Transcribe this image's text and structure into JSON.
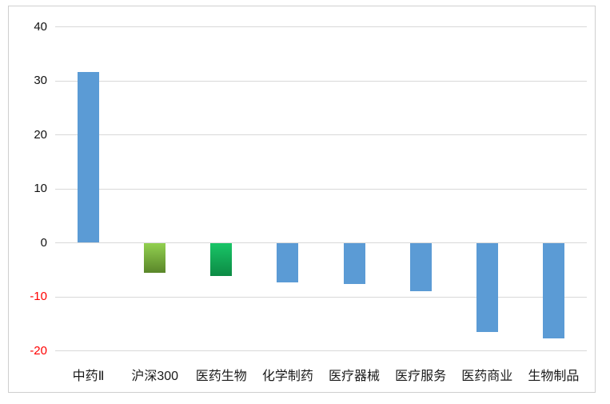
{
  "chart_data": {
    "type": "bar",
    "title": "",
    "xlabel": "",
    "ylabel": "",
    "categories": [
      "中药Ⅱ",
      "沪深300",
      "医药生物",
      "化学制药",
      "医疗器械",
      "医疗服务",
      "医药商业",
      "生物制品"
    ],
    "values": [
      31.6,
      -5.6,
      -6.2,
      -7.4,
      -7.6,
      -8.9,
      -16.5,
      -17.7
    ],
    "ylim": [
      -20,
      40
    ],
    "yticks": [
      40,
      30,
      20,
      10,
      0,
      -10,
      -20
    ],
    "grid": true,
    "legend_position": "none",
    "colors": {
      "default_bar": "#5b9bd5",
      "bar_fills": [
        {
          "type": "solid",
          "color": "#5b9bd5"
        },
        {
          "type": "gradient",
          "from": "#92d050",
          "to": "#5a8629"
        },
        {
          "type": "gradient",
          "from": "#19c567",
          "to": "#0c8a44"
        },
        {
          "type": "solid",
          "color": "#5b9bd5"
        },
        {
          "type": "solid",
          "color": "#5b9bd5"
        },
        {
          "type": "solid",
          "color": "#5b9bd5"
        },
        {
          "type": "solid",
          "color": "#5b9bd5"
        },
        {
          "type": "solid",
          "color": "#5b9bd5"
        }
      ],
      "positive_tick_label": "#111111",
      "negative_tick_label": "#ff0000",
      "gridline": "#d9d9d9",
      "frame_border": "#cfcfcf"
    }
  }
}
